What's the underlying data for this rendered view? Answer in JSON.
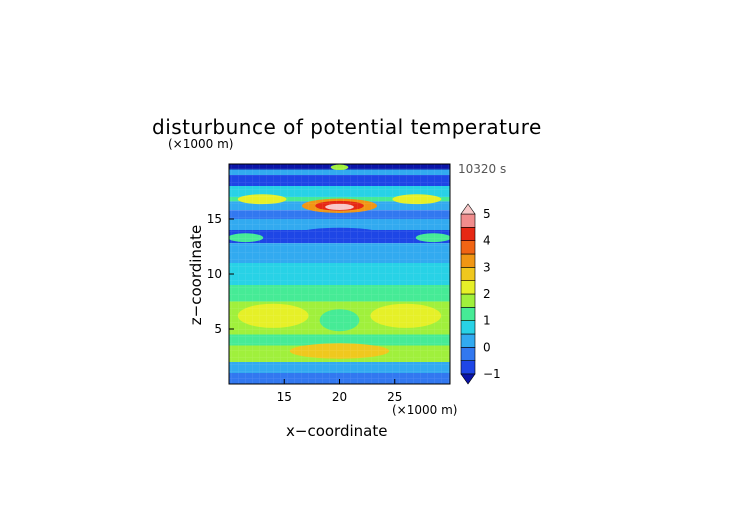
{
  "chart_data": {
    "type": "heatmap",
    "title": "disturbunce of potential temperature",
    "x_unit": "(×1000 m)",
    "y_unit": "(×1000 m)",
    "xlabel": "x−coordinate",
    "ylabel": "z−coordinate",
    "time_label": "10320 s",
    "xlim": [
      10,
      30
    ],
    "ylim": [
      0,
      20
    ],
    "x_ticks": [
      15,
      20,
      25
    ],
    "y_ticks": [
      5,
      10,
      15
    ],
    "colorbar": {
      "min": -1,
      "max": 5,
      "step": 0.5,
      "tick_values": [
        -1,
        0,
        1,
        2,
        3,
        4,
        5
      ],
      "tick_labels": [
        "−1",
        "0",
        "1",
        "2",
        "3",
        "4",
        "5"
      ],
      "colors": [
        "#0a14a8",
        "#1e46e6",
        "#3278f0",
        "#32aaf0",
        "#28d2e6",
        "#46eb96",
        "#a0f03c",
        "#e6f028",
        "#f0c81e",
        "#f09614",
        "#f06414",
        "#e62814",
        "#f08c8c",
        "#f8c8c8"
      ]
    },
    "bands": [
      {
        "z": [
          19.5,
          20.0
        ],
        "value": -1.2,
        "note": "deep blue top strip"
      },
      {
        "z": [
          19.0,
          19.5
        ],
        "value": 0.1
      },
      {
        "z": [
          18.0,
          19.0
        ],
        "value": -0.6
      },
      {
        "z": [
          17.0,
          18.0
        ],
        "value": 0.6
      },
      {
        "z": [
          16.6,
          17.0
        ],
        "value": 1.4
      },
      {
        "z": [
          15.8,
          16.6
        ],
        "value": 0.4
      },
      {
        "z": [
          15.0,
          15.8
        ],
        "value": -0.4
      },
      {
        "z": [
          14.0,
          15.0
        ],
        "value": 0.2
      },
      {
        "z": [
          12.8,
          14.0
        ],
        "value": -0.7
      },
      {
        "z": [
          11.0,
          12.8
        ],
        "value": 0.3
      },
      {
        "z": [
          9.0,
          11.0
        ],
        "value": 0.7
      },
      {
        "z": [
          7.5,
          9.0
        ],
        "value": 1.2
      },
      {
        "z": [
          4.5,
          7.5
        ],
        "value": 1.7
      },
      {
        "z": [
          3.5,
          4.5
        ],
        "value": 1.3
      },
      {
        "z": [
          2.0,
          3.5
        ],
        "value": 1.6
      },
      {
        "z": [
          1.0,
          2.0
        ],
        "value": 0.4
      },
      {
        "z": [
          0.0,
          1.0
        ],
        "value": -0.3
      }
    ],
    "blobs": [
      {
        "x": 20.0,
        "z": 16.2,
        "rx": 3.4,
        "rz": 0.65,
        "value": 3.2
      },
      {
        "x": 20.0,
        "z": 16.2,
        "rx": 2.2,
        "rz": 0.45,
        "value": 4.2
      },
      {
        "x": 20.0,
        "z": 16.1,
        "rx": 1.3,
        "rz": 0.28,
        "value": 5.0
      },
      {
        "x": 13.0,
        "z": 16.8,
        "rx": 2.2,
        "rz": 0.45,
        "value": 2.2
      },
      {
        "x": 27.0,
        "z": 16.8,
        "rx": 2.2,
        "rz": 0.45,
        "value": 2.2
      },
      {
        "x": 20.0,
        "z": 13.6,
        "rx": 4.0,
        "rz": 0.6,
        "value": -0.9
      },
      {
        "x": 14.0,
        "z": 6.2,
        "rx": 3.2,
        "rz": 1.1,
        "value": 2.1
      },
      {
        "x": 26.0,
        "z": 6.2,
        "rx": 3.2,
        "rz": 1.1,
        "value": 2.1
      },
      {
        "x": 20.0,
        "z": 3.0,
        "rx": 4.5,
        "rz": 0.7,
        "value": 2.6
      },
      {
        "x": 20.0,
        "z": 5.8,
        "rx": 1.8,
        "rz": 1.0,
        "value": 1.0
      },
      {
        "x": 11.5,
        "z": 13.3,
        "rx": 1.6,
        "rz": 0.4,
        "value": 1.0
      },
      {
        "x": 28.5,
        "z": 13.3,
        "rx": 1.6,
        "rz": 0.4,
        "value": 1.0
      },
      {
        "x": 20.0,
        "z": 19.7,
        "rx": 0.8,
        "rz": 0.25,
        "value": 1.8
      }
    ]
  }
}
